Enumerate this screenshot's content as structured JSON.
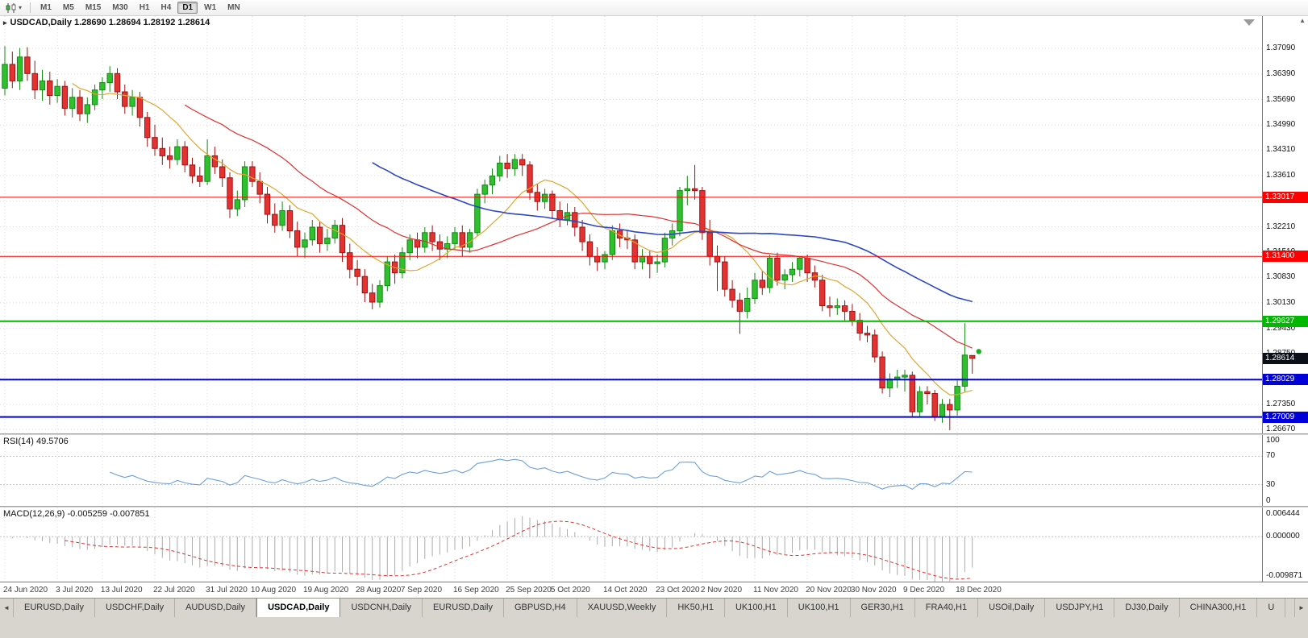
{
  "toolbar": {
    "timeframes": [
      {
        "label": "M1",
        "active": false
      },
      {
        "label": "M5",
        "active": false
      },
      {
        "label": "M15",
        "active": false
      },
      {
        "label": "M30",
        "active": false
      },
      {
        "label": "H1",
        "active": false
      },
      {
        "label": "H4",
        "active": false
      },
      {
        "label": "D1",
        "active": true
      },
      {
        "label": "W1",
        "active": false
      },
      {
        "label": "MN",
        "active": false
      }
    ]
  },
  "chart": {
    "title_line": "USDCAD,Daily 1.28690 1.28694 1.28192 1.28614",
    "symbol": "USDCAD",
    "period": "Daily",
    "open": "1.28690",
    "high": "1.28694",
    "low": "1.28192",
    "close": "1.28614",
    "marker": {
      "price": 1.288,
      "color": "#18b018"
    }
  },
  "price_axis": {
    "ticks": [
      "1.37090",
      "1.36390",
      "1.35690",
      "1.34990",
      "1.34310",
      "1.33610",
      "1.32910",
      "1.32210",
      "1.31510",
      "1.30830",
      "1.30130",
      "1.29430",
      "1.28750",
      "1.28050",
      "1.27350",
      "1.26670"
    ],
    "up_arrow": "▲",
    "current_price": {
      "label": "1.28614",
      "price": 1.28614,
      "color": "#0b0f17"
    }
  },
  "hlines": [
    {
      "label": "1.33017",
      "price": 1.33017,
      "color": "#fe0000",
      "width": 1
    },
    {
      "label": "1.31400",
      "price": 1.314,
      "color": "#fe0000",
      "width": 1
    },
    {
      "label": "1.29627",
      "price": 1.29627,
      "color": "#00b800",
      "width": 2
    },
    {
      "label": "1.28029",
      "price": 1.28029,
      "color": "#0000d8",
      "width": 2
    },
    {
      "label": "1.27009",
      "price": 1.27009,
      "color": "#0000d8",
      "width": 2
    }
  ],
  "chart_data": {
    "type": "candlestick",
    "symbol": "USDCAD",
    "timeframe": "Daily",
    "ylim": [
      1.2656,
      1.3797
    ],
    "x_tick_labels": [
      "24 Jun 2020",
      "3 Jul 2020",
      "13 Jul 2020",
      "22 Jul 2020",
      "31 Jul 2020",
      "10 Aug 2020",
      "19 Aug 2020",
      "28 Aug 2020",
      "7 Sep 2020",
      "16 Sep 2020",
      "25 Sep 2020",
      "5 Oct 2020",
      "14 Oct 2020",
      "23 Oct 2020",
      "2 Nov 2020",
      "11 Nov 2020",
      "20 Nov 2020",
      "30 Nov 2020",
      "9 Dec 2020",
      "18 Dec 2020"
    ],
    "x_tick_indices": [
      0,
      7,
      13,
      20,
      27,
      33,
      40,
      47,
      53,
      60,
      67,
      73,
      80,
      87,
      93,
      100,
      107,
      113,
      120,
      127
    ],
    "colors": {
      "up_fill": "#2fbf2f",
      "up_stroke": "#128a12",
      "down_fill": "#e23232",
      "down_stroke": "#a01212"
    },
    "ohlc": [
      [
        1.36,
        1.3715,
        1.358,
        1.3665
      ],
      [
        1.3665,
        1.37,
        1.36,
        1.362
      ],
      [
        1.362,
        1.371,
        1.3595,
        1.3685
      ],
      [
        1.3685,
        1.3712,
        1.362,
        1.364
      ],
      [
        1.364,
        1.3675,
        1.357,
        1.3595
      ],
      [
        1.3595,
        1.365,
        1.3565,
        1.362
      ],
      [
        1.362,
        1.3645,
        1.3555,
        1.358
      ],
      [
        1.358,
        1.3625,
        1.356,
        1.3605
      ],
      [
        1.3605,
        1.362,
        1.3525,
        1.3545
      ],
      [
        1.3545,
        1.36,
        1.352,
        1.3575
      ],
      [
        1.3575,
        1.3595,
        1.351,
        1.353
      ],
      [
        1.353,
        1.3575,
        1.3505,
        1.3555
      ],
      [
        1.3555,
        1.361,
        1.354,
        1.3595
      ],
      [
        1.3595,
        1.363,
        1.357,
        1.3615
      ],
      [
        1.3615,
        1.366,
        1.359,
        1.364
      ],
      [
        1.364,
        1.3655,
        1.357,
        1.359
      ],
      [
        1.359,
        1.361,
        1.353,
        1.355
      ],
      [
        1.355,
        1.3595,
        1.3525,
        1.3575
      ],
      [
        1.3575,
        1.359,
        1.3495,
        1.352
      ],
      [
        1.352,
        1.3535,
        1.344,
        1.3465
      ],
      [
        1.3465,
        1.35,
        1.3415,
        1.3435
      ],
      [
        1.3435,
        1.3465,
        1.339,
        1.3415
      ],
      [
        1.3415,
        1.344,
        1.338,
        1.3405
      ],
      [
        1.3405,
        1.346,
        1.339,
        1.344
      ],
      [
        1.344,
        1.3455,
        1.337,
        1.339
      ],
      [
        1.339,
        1.341,
        1.334,
        1.336
      ],
      [
        1.336,
        1.3385,
        1.333,
        1.3345
      ],
      [
        1.3345,
        1.346,
        1.3335,
        1.3415
      ],
      [
        1.3415,
        1.344,
        1.3365,
        1.3385
      ],
      [
        1.3385,
        1.3405,
        1.333,
        1.3355
      ],
      [
        1.3355,
        1.337,
        1.3245,
        1.327
      ],
      [
        1.327,
        1.332,
        1.325,
        1.3295
      ],
      [
        1.3295,
        1.34,
        1.3275,
        1.3385
      ],
      [
        1.3385,
        1.34,
        1.333,
        1.3345
      ],
      [
        1.3345,
        1.337,
        1.3285,
        1.331
      ],
      [
        1.331,
        1.333,
        1.323,
        1.3255
      ],
      [
        1.3255,
        1.3285,
        1.3205,
        1.3225
      ],
      [
        1.3225,
        1.329,
        1.321,
        1.3265
      ],
      [
        1.3265,
        1.328,
        1.319,
        1.321
      ],
      [
        1.321,
        1.3235,
        1.314,
        1.3165
      ],
      [
        1.3165,
        1.3205,
        1.3135,
        1.3185
      ],
      [
        1.3185,
        1.324,
        1.317,
        1.322
      ],
      [
        1.322,
        1.3235,
        1.315,
        1.3175
      ],
      [
        1.3175,
        1.3215,
        1.3155,
        1.319
      ],
      [
        1.319,
        1.324,
        1.3175,
        1.3225
      ],
      [
        1.3225,
        1.3245,
        1.3125,
        1.315
      ],
      [
        1.315,
        1.3175,
        1.308,
        1.3105
      ],
      [
        1.3105,
        1.313,
        1.306,
        1.3085
      ],
      [
        1.3085,
        1.3105,
        1.3015,
        1.304
      ],
      [
        1.304,
        1.3065,
        1.2995,
        1.3015
      ],
      [
        1.3015,
        1.3075,
        1.3,
        1.306
      ],
      [
        1.306,
        1.314,
        1.3045,
        1.3125
      ],
      [
        1.3125,
        1.3145,
        1.3065,
        1.3095
      ],
      [
        1.3095,
        1.3165,
        1.308,
        1.315
      ],
      [
        1.315,
        1.32,
        1.313,
        1.3185
      ],
      [
        1.3185,
        1.3205,
        1.3135,
        1.3165
      ],
      [
        1.3165,
        1.322,
        1.315,
        1.3205
      ],
      [
        1.3205,
        1.3225,
        1.3155,
        1.318
      ],
      [
        1.318,
        1.32,
        1.313,
        1.316
      ],
      [
        1.316,
        1.3195,
        1.3135,
        1.3175
      ],
      [
        1.3175,
        1.322,
        1.316,
        1.3205
      ],
      [
        1.3205,
        1.3225,
        1.314,
        1.3165
      ],
      [
        1.3165,
        1.3215,
        1.315,
        1.3205
      ],
      [
        1.3205,
        1.3325,
        1.3195,
        1.331
      ],
      [
        1.331,
        1.335,
        1.3285,
        1.3335
      ],
      [
        1.3335,
        1.338,
        1.331,
        1.336
      ],
      [
        1.336,
        1.3415,
        1.3345,
        1.3395
      ],
      [
        1.3395,
        1.342,
        1.3355,
        1.338
      ],
      [
        1.338,
        1.342,
        1.336,
        1.3405
      ],
      [
        1.3405,
        1.342,
        1.336,
        1.339
      ],
      [
        1.339,
        1.34,
        1.3295,
        1.3315
      ],
      [
        1.3315,
        1.334,
        1.3265,
        1.329
      ],
      [
        1.329,
        1.3325,
        1.327,
        1.331
      ],
      [
        1.331,
        1.332,
        1.3245,
        1.3265
      ],
      [
        1.3265,
        1.329,
        1.322,
        1.324
      ],
      [
        1.324,
        1.3285,
        1.3225,
        1.326
      ],
      [
        1.326,
        1.3275,
        1.3195,
        1.322
      ],
      [
        1.322,
        1.324,
        1.3155,
        1.318
      ],
      [
        1.318,
        1.32,
        1.3115,
        1.314
      ],
      [
        1.314,
        1.3165,
        1.31,
        1.3125
      ],
      [
        1.3125,
        1.3155,
        1.3105,
        1.3145
      ],
      [
        1.3145,
        1.3225,
        1.313,
        1.321
      ],
      [
        1.321,
        1.323,
        1.3165,
        1.319
      ],
      [
        1.319,
        1.321,
        1.316,
        1.3185
      ],
      [
        1.3185,
        1.32,
        1.3105,
        1.3125
      ],
      [
        1.3125,
        1.316,
        1.3105,
        1.314
      ],
      [
        1.314,
        1.3155,
        1.308,
        1.312
      ],
      [
        1.312,
        1.3145,
        1.3095,
        1.3125
      ],
      [
        1.3125,
        1.3205,
        1.311,
        1.319
      ],
      [
        1.319,
        1.323,
        1.317,
        1.321
      ],
      [
        1.321,
        1.333,
        1.3195,
        1.332
      ],
      [
        1.332,
        1.336,
        1.328,
        1.3325
      ],
      [
        1.3325,
        1.339,
        1.3295,
        1.332
      ],
      [
        1.332,
        1.333,
        1.3185,
        1.3205
      ],
      [
        1.3205,
        1.324,
        1.3115,
        1.314
      ],
      [
        1.314,
        1.317,
        1.3045,
        1.3125
      ],
      [
        1.3125,
        1.314,
        1.303,
        1.305
      ],
      [
        1.305,
        1.3075,
        1.3,
        1.302
      ],
      [
        1.302,
        1.304,
        1.2928,
        1.299
      ],
      [
        1.299,
        1.3055,
        1.297,
        1.3025
      ],
      [
        1.3025,
        1.3095,
        1.301,
        1.3075
      ],
      [
        1.3075,
        1.31,
        1.3035,
        1.3055
      ],
      [
        1.3055,
        1.3145,
        1.304,
        1.3135
      ],
      [
        1.3135,
        1.315,
        1.306,
        1.3075
      ],
      [
        1.3075,
        1.3105,
        1.305,
        1.309
      ],
      [
        1.309,
        1.3125,
        1.307,
        1.3105
      ],
      [
        1.3105,
        1.314,
        1.3085,
        1.3135
      ],
      [
        1.3135,
        1.3145,
        1.307,
        1.3095
      ],
      [
        1.3095,
        1.3115,
        1.3055,
        1.3075
      ],
      [
        1.3075,
        1.309,
        1.299,
        1.3005
      ],
      [
        1.3005,
        1.303,
        1.2975,
        1.3
      ],
      [
        1.3,
        1.3025,
        1.298,
        1.3005
      ],
      [
        1.3005,
        1.302,
        1.2965,
        1.299
      ],
      [
        1.299,
        1.301,
        1.295,
        1.2965
      ],
      [
        1.2965,
        1.2985,
        1.291,
        1.293
      ],
      [
        1.293,
        1.295,
        1.2905,
        1.2925
      ],
      [
        1.2925,
        1.294,
        1.285,
        1.2865
      ],
      [
        1.2865,
        1.288,
        1.2765,
        1.278
      ],
      [
        1.278,
        1.282,
        1.2755,
        1.2805
      ],
      [
        1.2805,
        1.283,
        1.278,
        1.281
      ],
      [
        1.281,
        1.283,
        1.277,
        1.2815
      ],
      [
        1.2815,
        1.2825,
        1.27,
        1.2715
      ],
      [
        1.2715,
        1.2785,
        1.27,
        1.277
      ],
      [
        1.277,
        1.2785,
        1.2735,
        1.2765
      ],
      [
        1.2765,
        1.2775,
        1.269,
        1.27
      ],
      [
        1.27,
        1.275,
        1.2685,
        1.2735
      ],
      [
        1.2735,
        1.275,
        1.2665,
        1.272
      ],
      [
        1.272,
        1.28,
        1.2705,
        1.2785
      ],
      [
        1.2785,
        1.2957,
        1.277,
        1.287
      ],
      [
        1.2869,
        1.28694,
        1.28192,
        1.28614
      ]
    ],
    "moving_averages": [
      {
        "period": 10,
        "color": "#dfa62f",
        "width": 1.2
      },
      {
        "period": 25,
        "color": "#e03030",
        "width": 1.2
      },
      {
        "period": 50,
        "color": "#2b47c4",
        "width": 1.6
      }
    ],
    "indicators": {
      "rsi": {
        "label": "RSI(14) 49.5706",
        "period": 14,
        "value": "49.5706",
        "levels": [
          70,
          30
        ],
        "ylim": [
          0,
          100
        ],
        "axis_labels": [
          "100",
          "70",
          "30",
          "0"
        ],
        "color": "#6ba0d8"
      },
      "macd": {
        "label": "MACD(12,26,9) -0.005259 -0.007851",
        "fast": 12,
        "slow": 26,
        "signal_period": 9,
        "value": "-0.005259",
        "signal_value": "-0.007851",
        "ylim": [
          -0.009871,
          0.006444
        ],
        "axis_labels": [
          "0.006444",
          "0.000000",
          "-0.009871"
        ],
        "histogram_color": "#ababab",
        "signal_color": "#e03030"
      }
    }
  },
  "tab_bar": {
    "left_scroll": "◄",
    "right_scroll": "►",
    "tabs": [
      {
        "label": "EURUSD,Daily",
        "active": false
      },
      {
        "label": "USDCHF,Daily",
        "active": false
      },
      {
        "label": "AUDUSD,Daily",
        "active": false
      },
      {
        "label": "USDCAD,Daily",
        "active": true
      },
      {
        "label": "USDCNH,Daily",
        "active": false
      },
      {
        "label": "EURUSD,Daily",
        "active": false
      },
      {
        "label": "GBPUSD,H4",
        "active": false
      },
      {
        "label": "XAUUSD,Weekly",
        "active": false
      },
      {
        "label": "HK50,H1",
        "active": false
      },
      {
        "label": "UK100,H1",
        "active": false
      },
      {
        "label": "UK100,H1",
        "active": false
      },
      {
        "label": "GER30,H1",
        "active": false
      },
      {
        "label": "FRA40,H1",
        "active": false
      },
      {
        "label": "USOil,Daily",
        "active": false
      },
      {
        "label": "USDJPY,H1",
        "active": false
      },
      {
        "label": "DJ30,Daily",
        "active": false
      },
      {
        "label": "CHINA300,H1",
        "active": false
      },
      {
        "label": "U",
        "active": false
      }
    ]
  }
}
